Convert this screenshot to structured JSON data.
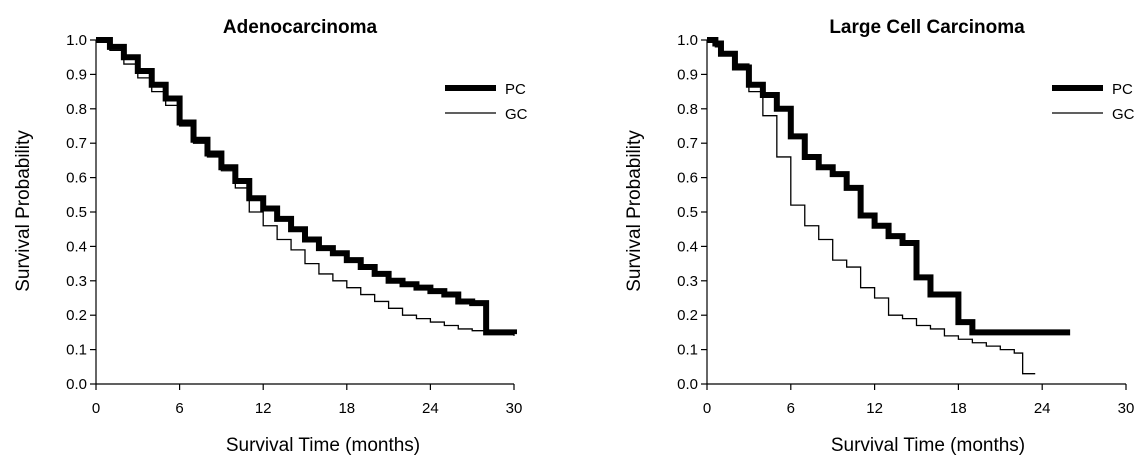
{
  "chart_data": [
    {
      "type": "line",
      "title": "Adenocarcinoma",
      "xlabel": "Survival Time (months)",
      "ylabel": "Survival Probability",
      "xlim": [
        0,
        30
      ],
      "ylim": [
        0,
        1
      ],
      "xticks": [
        "0",
        "6",
        "12",
        "18",
        "24",
        "30"
      ],
      "yticks": [
        "0.0",
        "0.1",
        "0.2",
        "0.3",
        "0.4",
        "0.5",
        "0.6",
        "0.7",
        "0.8",
        "0.9",
        "1.0"
      ],
      "grid": false,
      "legend_position": "top-right",
      "series": [
        {
          "name": "PC",
          "style": "thick",
          "color": "#000000",
          "x": [
            0,
            1,
            2,
            3,
            4,
            5,
            6,
            7,
            8,
            9,
            10,
            11,
            12,
            13,
            14,
            15,
            16,
            17,
            18,
            19,
            20,
            21,
            22,
            23,
            24,
            25,
            26,
            27,
            28,
            29,
            30
          ],
          "y": [
            1.0,
            0.98,
            0.95,
            0.91,
            0.87,
            0.83,
            0.76,
            0.71,
            0.67,
            0.63,
            0.59,
            0.54,
            0.51,
            0.48,
            0.45,
            0.42,
            0.395,
            0.38,
            0.36,
            0.34,
            0.32,
            0.3,
            0.29,
            0.28,
            0.27,
            0.26,
            0.24,
            0.235,
            0.15,
            0.15,
            0.145
          ]
        },
        {
          "name": "GC",
          "style": "thin",
          "color": "#000000",
          "x": [
            0,
            1,
            2,
            3,
            4,
            5,
            6,
            7,
            8,
            9,
            10,
            11,
            12,
            13,
            14,
            15,
            16,
            17,
            18,
            19,
            20,
            21,
            22,
            23,
            24,
            25,
            26,
            27,
            28,
            29,
            30
          ],
          "y": [
            1.0,
            0.97,
            0.93,
            0.89,
            0.85,
            0.81,
            0.75,
            0.7,
            0.66,
            0.62,
            0.57,
            0.5,
            0.46,
            0.42,
            0.39,
            0.35,
            0.32,
            0.3,
            0.28,
            0.26,
            0.24,
            0.22,
            0.2,
            0.19,
            0.18,
            0.17,
            0.16,
            0.155,
            0.15,
            0.145,
            0.14
          ]
        }
      ]
    },
    {
      "type": "line",
      "title": "Large Cell Carcinoma",
      "xlabel": "Survival Time (months)",
      "ylabel": "Survival Probability",
      "xlim": [
        0,
        30
      ],
      "ylim": [
        0,
        1
      ],
      "xticks": [
        "0",
        "6",
        "12",
        "18",
        "24",
        "30"
      ],
      "yticks": [
        "0.0",
        "0.1",
        "0.2",
        "0.3",
        "0.4",
        "0.5",
        "0.6",
        "0.7",
        "0.8",
        "0.9",
        "1.0"
      ],
      "grid": false,
      "legend_position": "top-right",
      "series": [
        {
          "name": "PC",
          "style": "thick",
          "color": "#000000",
          "x": [
            0,
            0.6,
            1,
            2,
            3,
            4,
            5,
            6,
            7,
            8,
            9,
            10,
            11,
            12,
            13,
            14,
            15,
            16,
            17,
            18,
            19,
            20,
            21,
            22,
            23,
            24,
            25,
            26
          ],
          "y": [
            1.0,
            0.99,
            0.96,
            0.92,
            0.87,
            0.84,
            0.8,
            0.72,
            0.66,
            0.63,
            0.61,
            0.57,
            0.49,
            0.46,
            0.43,
            0.41,
            0.31,
            0.26,
            0.26,
            0.18,
            0.15,
            0.15,
            0.15,
            0.15,
            0.15,
            0.15,
            0.15,
            0.15
          ]
        },
        {
          "name": "GC",
          "style": "thin",
          "color": "#000000",
          "x": [
            0,
            0.6,
            1,
            2,
            3,
            4,
            5,
            6,
            7,
            8,
            9,
            10,
            11,
            12,
            13,
            14,
            15,
            16,
            17,
            18,
            19,
            20,
            21,
            22,
            22.6,
            23.5
          ],
          "y": [
            1.0,
            0.98,
            0.96,
            0.93,
            0.85,
            0.78,
            0.66,
            0.52,
            0.46,
            0.42,
            0.36,
            0.34,
            0.28,
            0.25,
            0.2,
            0.19,
            0.17,
            0.16,
            0.14,
            0.13,
            0.12,
            0.11,
            0.1,
            0.09,
            0.03,
            0.03
          ]
        }
      ]
    }
  ]
}
